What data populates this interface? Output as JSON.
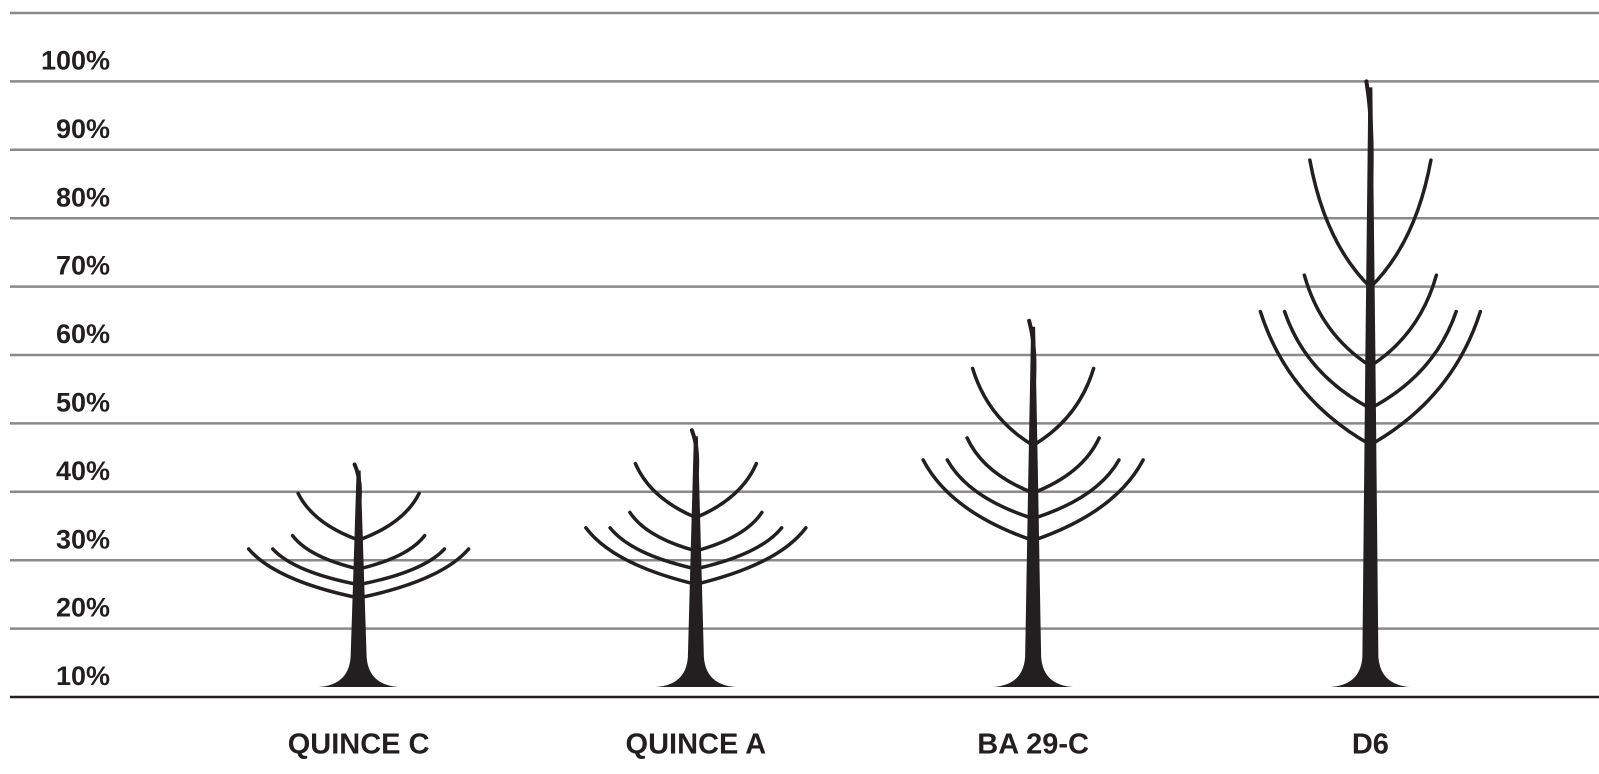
{
  "chart_data": {
    "type": "tree",
    "categories": [
      "QUINCE C",
      "QUINCE A",
      "BA 29-C",
      "D6"
    ],
    "values": [
      44,
      49,
      65,
      100
    ],
    "color": "#231f20",
    "ylim": [
      10,
      110
    ],
    "yticks": [
      {
        "value": 10,
        "label": "10%"
      },
      {
        "value": 20,
        "label": "20%"
      },
      {
        "value": 30,
        "label": "30%"
      },
      {
        "value": 40,
        "label": "40%"
      },
      {
        "value": 50,
        "label": "50%"
      },
      {
        "value": 60,
        "label": "60%"
      },
      {
        "value": 70,
        "label": "70%"
      },
      {
        "value": 80,
        "label": "80%"
      },
      {
        "value": 90,
        "label": "90%"
      },
      {
        "value": 100,
        "label": "100%"
      }
    ],
    "grid": true
  }
}
